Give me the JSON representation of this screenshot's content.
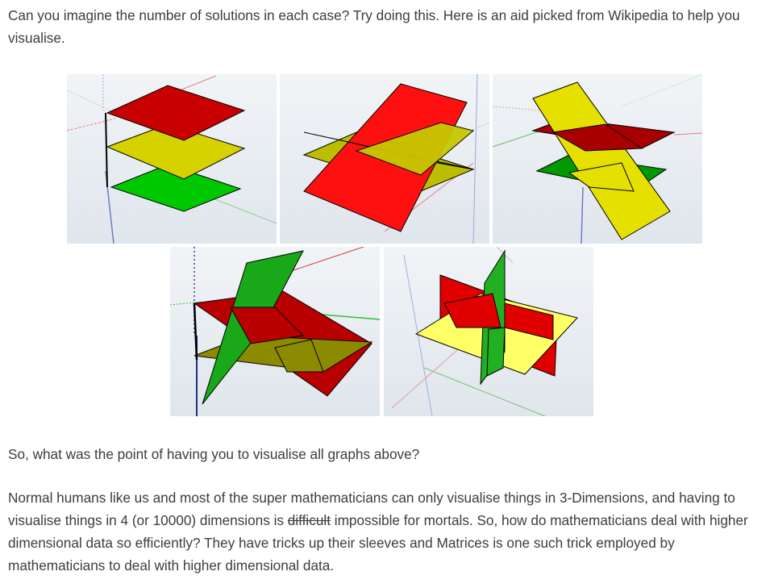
{
  "intro": {
    "text": "Can you imagine the number of solutions in each case? Try doing this. Here is an aid picked from Wikipedia to help you visualise."
  },
  "figures": [
    {
      "description_icon": "three-parallel-planes-icon"
    },
    {
      "description_icon": "planes-intersecting-in-line-icon"
    },
    {
      "description_icon": "two-parallel-planes-cut-by-third-icon"
    },
    {
      "description_icon": "planes-pairwise-intersecting-icon"
    },
    {
      "description_icon": "planes-intersecting-at-point-icon"
    }
  ],
  "question": {
    "text": "So, what was the point of having you to visualise all graphs above?"
  },
  "body": {
    "part1": "Normal humans like us and most of the super mathematicians can only visualise things in 3-Dimensions, and having to visualise things in 4 (or 10000) dimensions is ",
    "struck": "difficult",
    "part2": " impossible for mortals. So, how do mathematicians deal with higher dimensional data so efficiently? They have tricks up their sleeves and Matrices is one such trick employed by mathematicians to deal with higher dimensional data."
  },
  "colors": {
    "text": "#3d3d3d",
    "red": "#e00000",
    "dark_red": "#b80000",
    "yellow": "#e6e000",
    "olive": "#bdbb00",
    "green": "#00b400",
    "light_yellow": "#ffff66"
  }
}
